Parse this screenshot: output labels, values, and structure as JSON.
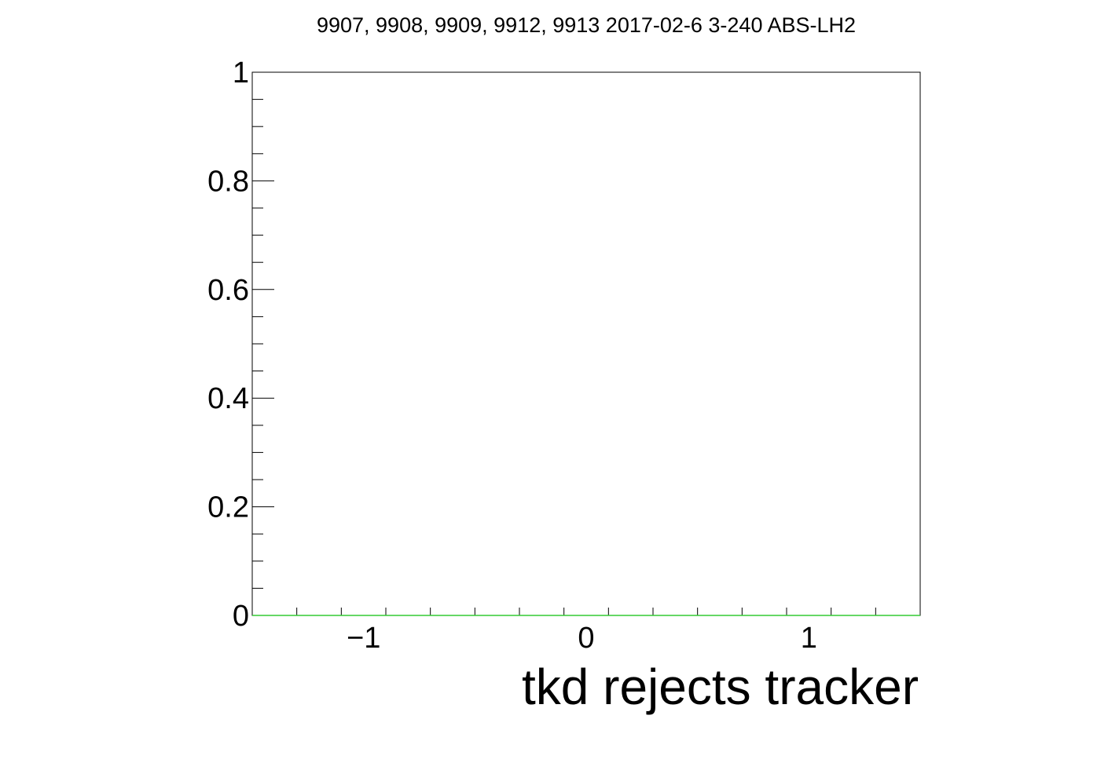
{
  "chart_data": {
    "type": "line",
    "title": "9907, 9908, 9909, 9912, 9913 2017-02-6 3-240 ABS-LH2",
    "xlabel": "tkd rejects tracker",
    "ylabel": "",
    "xlim": [
      -1.5,
      1.5
    ],
    "ylim": [
      0,
      1
    ],
    "x_ticks": [
      {
        "value": -1,
        "label": "−1"
      },
      {
        "value": 0,
        "label": "0"
      },
      {
        "value": 1,
        "label": "1"
      }
    ],
    "y_ticks": [
      {
        "value": 0,
        "label": "0"
      },
      {
        "value": 0.2,
        "label": "0.2"
      },
      {
        "value": 0.4,
        "label": "0.4"
      },
      {
        "value": 0.6,
        "label": "0.6"
      },
      {
        "value": 0.8,
        "label": "0.8"
      },
      {
        "value": 1,
        "label": "1"
      }
    ],
    "x_minor_step": 0.2,
    "y_minor_step": 0.05,
    "grid": false,
    "series": [
      {
        "color": "#33cc33",
        "x": [
          -1.5,
          1.5
        ],
        "y": [
          0,
          0
        ]
      }
    ]
  }
}
